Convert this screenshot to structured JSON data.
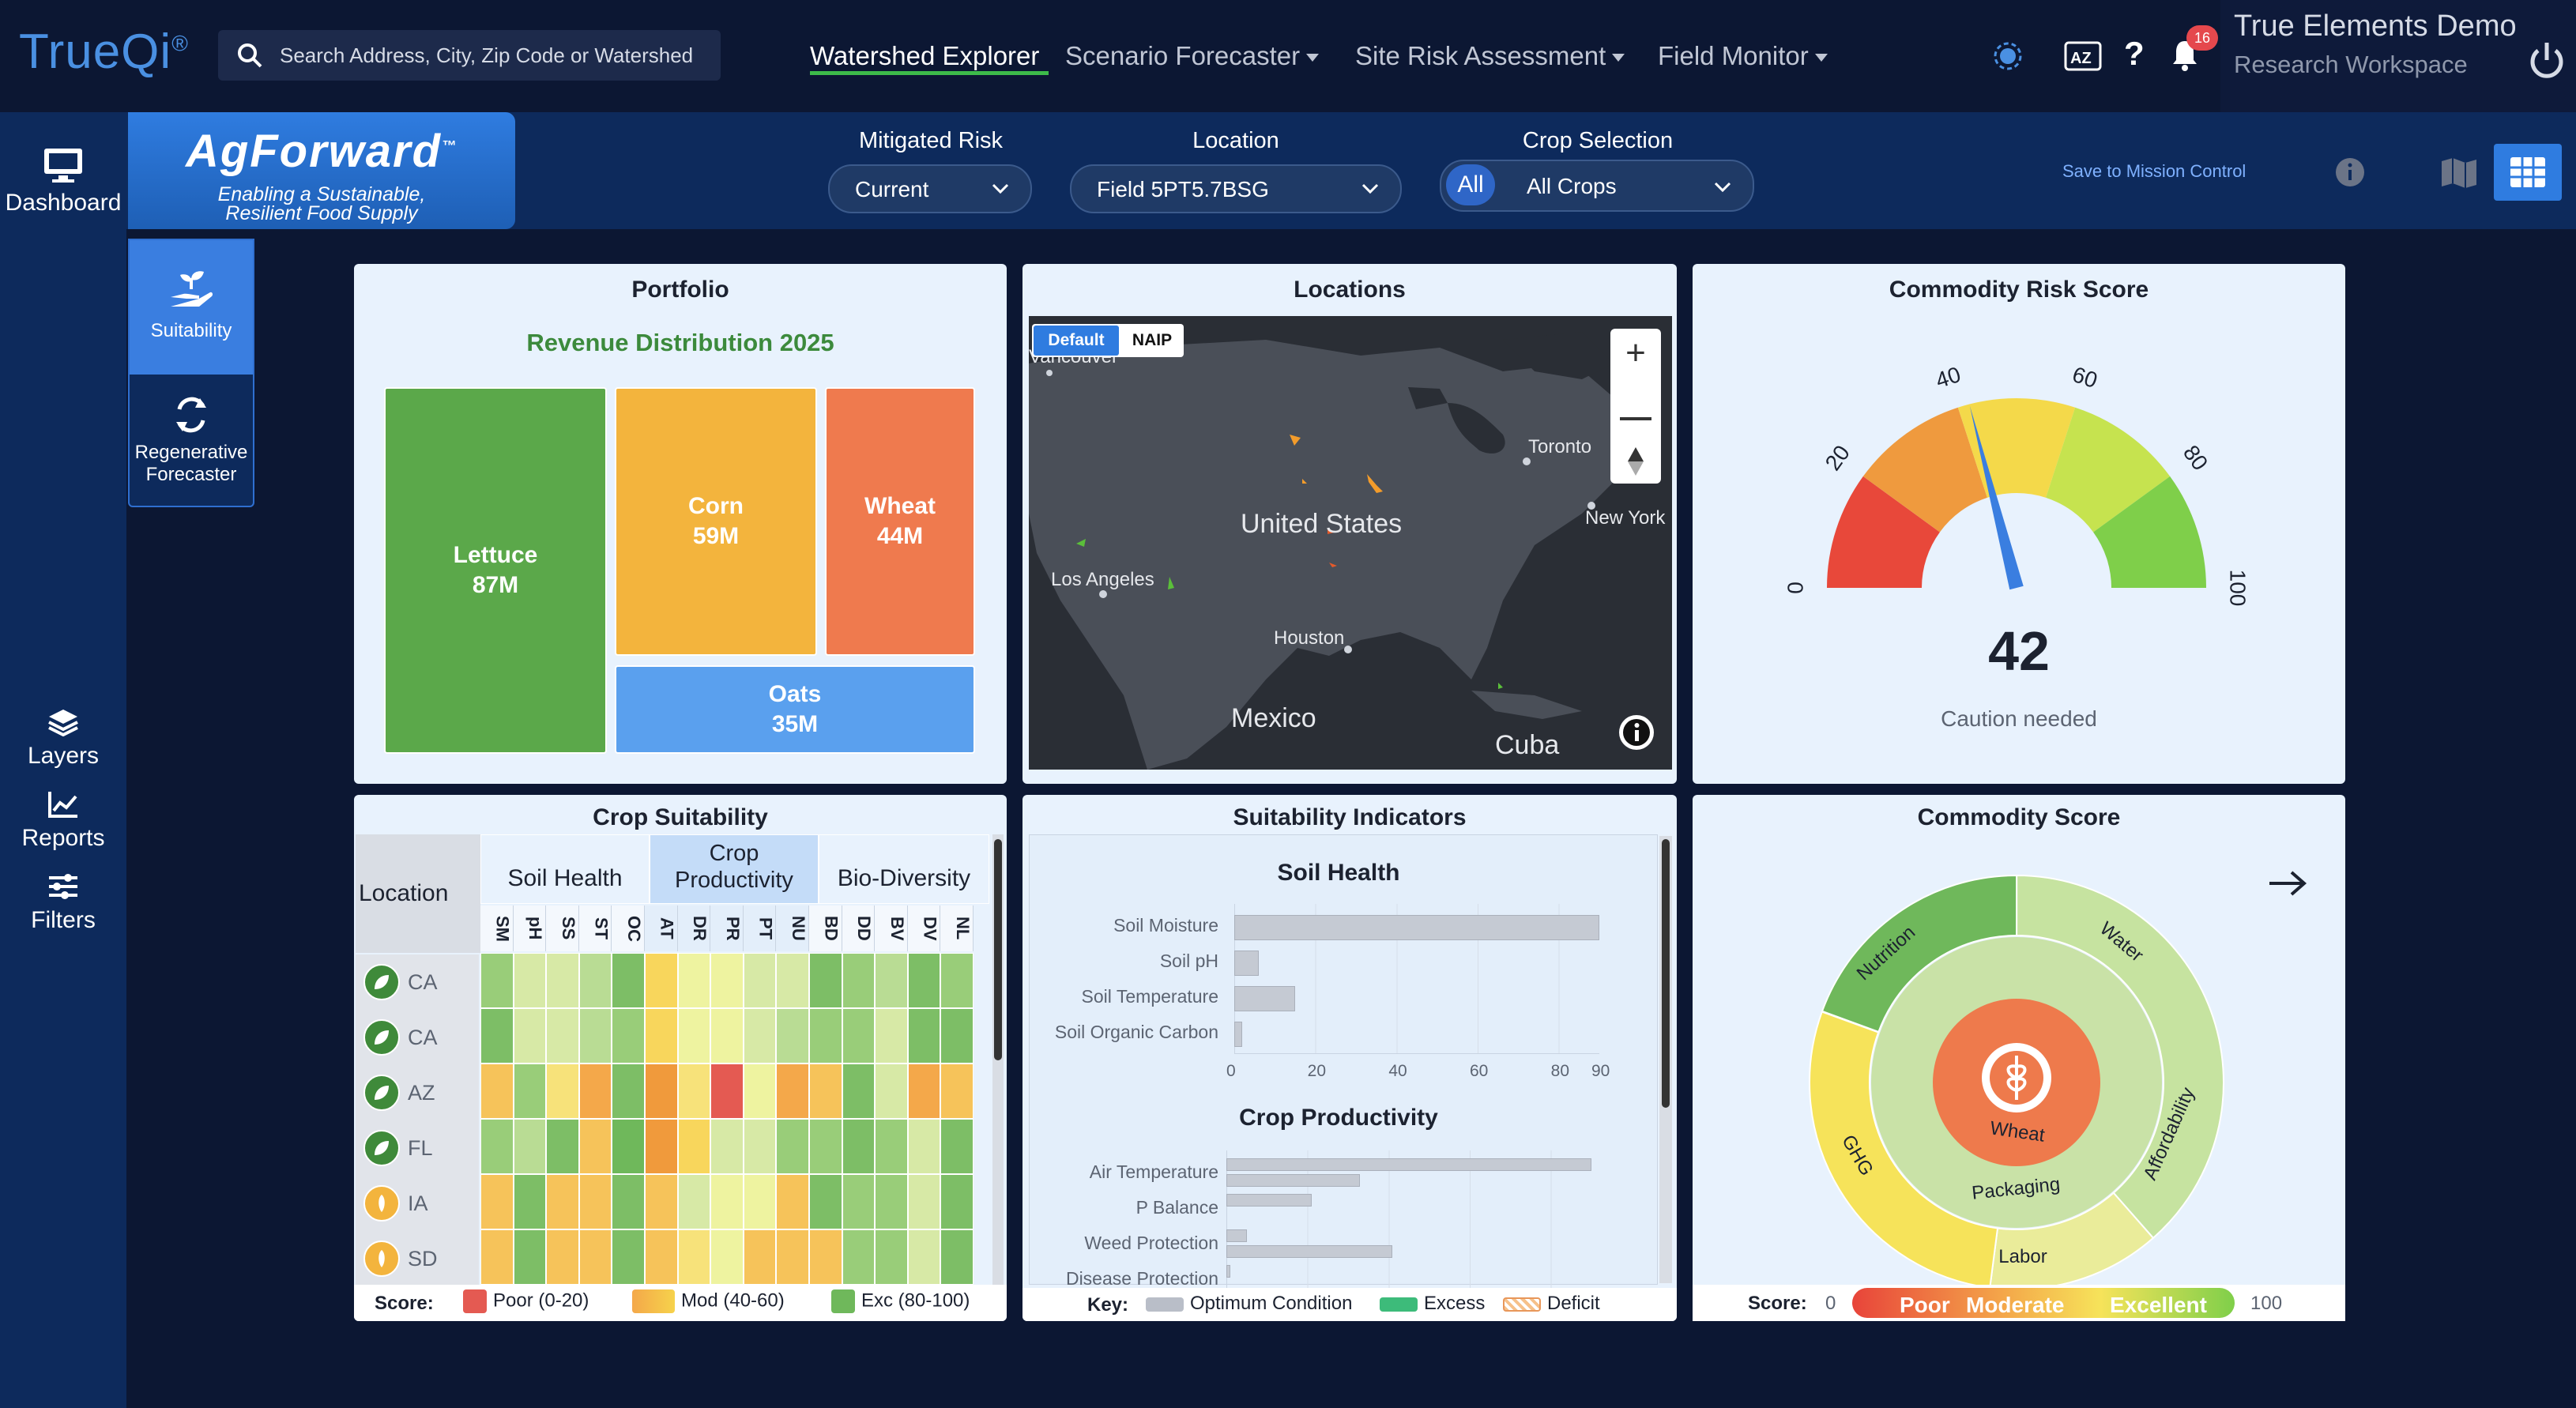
{
  "app": {
    "logo": "TrueQi",
    "logo_mark": "®",
    "search_placeholder": "Search Address, City, Zip Code or Watershed"
  },
  "nav": {
    "items": [
      {
        "label": "Watershed Explorer",
        "active": true
      },
      {
        "label": "Scenario Forecaster"
      },
      {
        "label": "Site Risk Assessment"
      },
      {
        "label": "Field Monitor"
      }
    ],
    "notification_count": "16",
    "user_name": "True Elements Demo",
    "workspace": "Research Workspace"
  },
  "leftbar": {
    "dashboard": "Dashboard",
    "layers": "Layers",
    "reports": "Reports",
    "filters": "Filters"
  },
  "agforward": {
    "title": "AgForward",
    "tm": "™",
    "tagline1": "Enabling a Sustainable,",
    "tagline2": "Resilient Food Supply"
  },
  "tabs": {
    "suitability": "Suitability",
    "regen1": "Regenerative",
    "regen2": "Forecaster"
  },
  "filters": {
    "mitigated_label": "Mitigated Risk",
    "mitigated_value": "Current",
    "location_label": "Location",
    "location_value": "Field 5PT5.7BSG",
    "crop_label": "Crop Selection",
    "crop_all": "All",
    "crop_value": "All Crops",
    "save": "Save to Mission Control"
  },
  "portfolio": {
    "title": "Portfolio",
    "subtitle": "Revenue Distribution 2025",
    "items": [
      {
        "name": "Lettuce",
        "value": "87M",
        "color": "#5ba84a"
      },
      {
        "name": "Corn",
        "value": "59M",
        "color": "#f3b43d"
      },
      {
        "name": "Wheat",
        "value": "44M",
        "color": "#ef7a4e"
      },
      {
        "name": "Oats",
        "value": "35M",
        "color": "#5aa0ee"
      }
    ]
  },
  "locations": {
    "title": "Locations",
    "basemap_default": "Default",
    "basemap_naip": "NAIP",
    "labels": [
      "Vancouver",
      "Toronto",
      "United States",
      "New York",
      "Los Angeles",
      "Houston",
      "Mexico",
      "Cuba"
    ]
  },
  "risk": {
    "title": "Commodity Risk Score",
    "ticks": [
      "0",
      "20",
      "40",
      "60",
      "80",
      "100"
    ],
    "value": 42,
    "value_text": "42",
    "caption": "Caution needed"
  },
  "suitability": {
    "title": "Crop Suitability",
    "location_header": "Location",
    "groups": [
      "Soil Health",
      "Crop Productivity",
      "Bio-Diversity"
    ],
    "columns": [
      "SM",
      "pH",
      "SS",
      "ST",
      "OC",
      "AT",
      "DR",
      "PR",
      "PT",
      "NU",
      "BD",
      "DD",
      "BV",
      "DV",
      "NL"
    ],
    "rows": [
      {
        "loc": "CA",
        "icon": "lettuce-icon",
        "scores": [
          3,
          5,
          5,
          4,
          2,
          8,
          6,
          6,
          5,
          5,
          2,
          3,
          4,
          2,
          3
        ]
      },
      {
        "loc": "CA",
        "icon": "lettuce-icon",
        "scores": [
          2,
          5,
          5,
          4,
          3,
          8,
          6,
          6,
          5,
          4,
          3,
          3,
          5,
          2,
          2
        ]
      },
      {
        "loc": "AZ",
        "icon": "lettuce-icon",
        "scores": [
          9,
          3,
          7,
          10,
          2,
          11,
          7,
          12,
          6,
          10,
          9,
          2,
          5,
          10,
          9
        ]
      },
      {
        "loc": "FL",
        "icon": "lettuce-icon",
        "scores": [
          3,
          4,
          2,
          9,
          1,
          11,
          8,
          5,
          5,
          3,
          3,
          2,
          3,
          5,
          2
        ]
      },
      {
        "loc": "IA",
        "icon": "corn-icon",
        "scores": [
          9,
          2,
          9,
          9,
          2,
          9,
          5,
          6,
          6,
          9,
          2,
          3,
          3,
          5,
          2
        ]
      },
      {
        "loc": "SD",
        "icon": "corn-icon",
        "scores": [
          9,
          2,
          9,
          9,
          2,
          9,
          7,
          6,
          9,
          9,
          9,
          3,
          3,
          5,
          2
        ]
      }
    ],
    "legend_score": "Score:",
    "legend_poor": "Poor (0-20)",
    "legend_mod": "Mod (40-60)",
    "legend_exc": "Exc (80-100)"
  },
  "indicators": {
    "title": "Suitability Indicators",
    "soil_title": "Soil Health",
    "soil": [
      {
        "name": "Soil Moisture",
        "value": 90
      },
      {
        "name": "Soil pH",
        "value": 6
      },
      {
        "name": "Soil Temperature",
        "value": 15
      },
      {
        "name": "Soil Organic Carbon",
        "value": 2
      }
    ],
    "soil_ticks": [
      "0",
      "20",
      "40",
      "60",
      "80",
      "90"
    ],
    "crop_title": "Crop Productivity",
    "crop": [
      {
        "name": "Air Temperature",
        "value": 90,
        "value2": 33
      },
      {
        "name": "P Balance",
        "value": 21
      },
      {
        "name": "Weed Protection",
        "value": 5,
        "value2": 41
      },
      {
        "name": "Disease Protection",
        "value": 1
      }
    ],
    "key": "Key:",
    "key_opt": "Optimum Condition",
    "key_excess": "Excess",
    "key_deficit": "Deficit"
  },
  "commodity": {
    "title": "Commodity Score",
    "outer": [
      "Nutrition",
      "Water",
      "Affordability",
      "Labor",
      "GHG"
    ],
    "inner": "Packaging",
    "center": "Wheat",
    "score_label": "Score:",
    "min": "0",
    "poor": "Poor",
    "moderate": "Moderate",
    "excellent": "Excellent",
    "max": "100"
  }
}
